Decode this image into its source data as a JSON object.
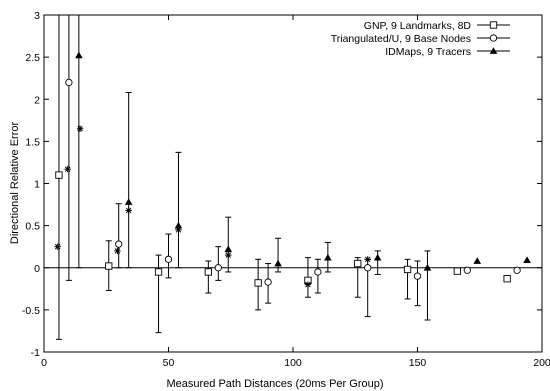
{
  "chart_data": {
    "type": "scatter",
    "xlabel": "Measured Path Distances (20ms Per Group)",
    "ylabel": "Directional Relative Error",
    "xlim": [
      0,
      200
    ],
    "ylim": [
      -1,
      3
    ],
    "xticks": [
      0,
      50,
      100,
      150,
      200
    ],
    "yticks": [
      -1,
      -0.5,
      0,
      0.5,
      1,
      1.5,
      2,
      2.5,
      3
    ],
    "xtick_labels": [
      "0",
      "50",
      "100",
      "150",
      "200"
    ],
    "ytick_labels": [
      "-1",
      "-0.5",
      "0",
      "0.5",
      "1",
      "1.5",
      "2",
      "2.5",
      "3"
    ],
    "grid": false,
    "zero_line": true,
    "legend_position": "top-right",
    "series": [
      {
        "name": "GNP, 9 Landmarks, 8D",
        "marker": "square",
        "points": [
          {
            "x": 6,
            "y": 1.1,
            "lo": -0.85,
            "hi": 3.0
          },
          {
            "x": 26,
            "y": 0.02,
            "lo": -0.27,
            "hi": 0.32
          },
          {
            "x": 46,
            "y": -0.05,
            "lo": -0.77,
            "hi": 0.15
          },
          {
            "x": 66,
            "y": -0.05,
            "lo": -0.3,
            "hi": 0.08
          },
          {
            "x": 86,
            "y": -0.18,
            "lo": -0.5,
            "hi": 0.1
          },
          {
            "x": 106,
            "y": -0.15,
            "lo": -0.35,
            "hi": 0.12
          },
          {
            "x": 126,
            "y": 0.05,
            "lo": -0.35,
            "hi": 0.12
          },
          {
            "x": 146,
            "y": -0.02,
            "lo": -0.37,
            "hi": 0.1
          },
          {
            "x": 166,
            "y": -0.04
          },
          {
            "x": 186,
            "y": -0.13
          }
        ]
      },
      {
        "name": "Triangulated/U, 9 Base Nodes",
        "marker": "circle",
        "points": [
          {
            "x": 10,
            "y": 2.2,
            "lo": -0.15,
            "hi": 3.0
          },
          {
            "x": 30,
            "y": 0.28,
            "lo": 0.0,
            "hi": 0.76
          },
          {
            "x": 50,
            "y": 0.1,
            "lo": -0.12,
            "hi": 0.4
          },
          {
            "x": 70,
            "y": 0.0,
            "lo": -0.15,
            "hi": 0.25
          },
          {
            "x": 90,
            "y": -0.17,
            "lo": -0.42,
            "hi": 0.05
          },
          {
            "x": 110,
            "y": -0.05,
            "lo": -0.3,
            "hi": 0.1
          },
          {
            "x": 130,
            "y": 0.0,
            "lo": -0.58,
            "hi": 0.1
          },
          {
            "x": 150,
            "y": -0.1,
            "lo": -0.45,
            "hi": 0.08
          },
          {
            "x": 170,
            "y": -0.03
          },
          {
            "x": 190,
            "y": -0.03
          }
        ]
      },
      {
        "name": "IDMaps, 9 Tracers",
        "marker": "triangle",
        "points": [
          {
            "x": 14,
            "y": 2.52,
            "lo": 0.0,
            "hi": 3.0
          },
          {
            "x": 34,
            "y": 0.78,
            "lo": 0.0,
            "hi": 2.08
          },
          {
            "x": 54,
            "y": 0.5,
            "lo": 0.0,
            "hi": 1.37
          },
          {
            "x": 74,
            "y": 0.22,
            "lo": -0.05,
            "hi": 0.6
          },
          {
            "x": 94,
            "y": 0.05,
            "lo": -0.05,
            "hi": 0.35
          },
          {
            "x": 114,
            "y": 0.12,
            "lo": -0.05,
            "hi": 0.3
          },
          {
            "x": 134,
            "y": 0.12,
            "lo": -0.08,
            "hi": 0.2
          },
          {
            "x": 154,
            "y": 0.0,
            "lo": -0.62,
            "hi": 0.2
          },
          {
            "x": 174,
            "y": 0.08
          },
          {
            "x": 194,
            "y": 0.09
          }
        ]
      },
      {
        "name": "",
        "marker": "star",
        "points": [
          {
            "x": 5.5,
            "y": 0.25
          },
          {
            "x": 9.5,
            "y": 1.17
          },
          {
            "x": 14.5,
            "y": 1.65
          },
          {
            "x": 29.5,
            "y": 0.2
          },
          {
            "x": 34,
            "y": 0.68
          },
          {
            "x": 54,
            "y": 0.45
          },
          {
            "x": 74,
            "y": 0.15
          },
          {
            "x": 106,
            "y": -0.2
          },
          {
            "x": 130,
            "y": 0.1
          }
        ]
      }
    ]
  }
}
